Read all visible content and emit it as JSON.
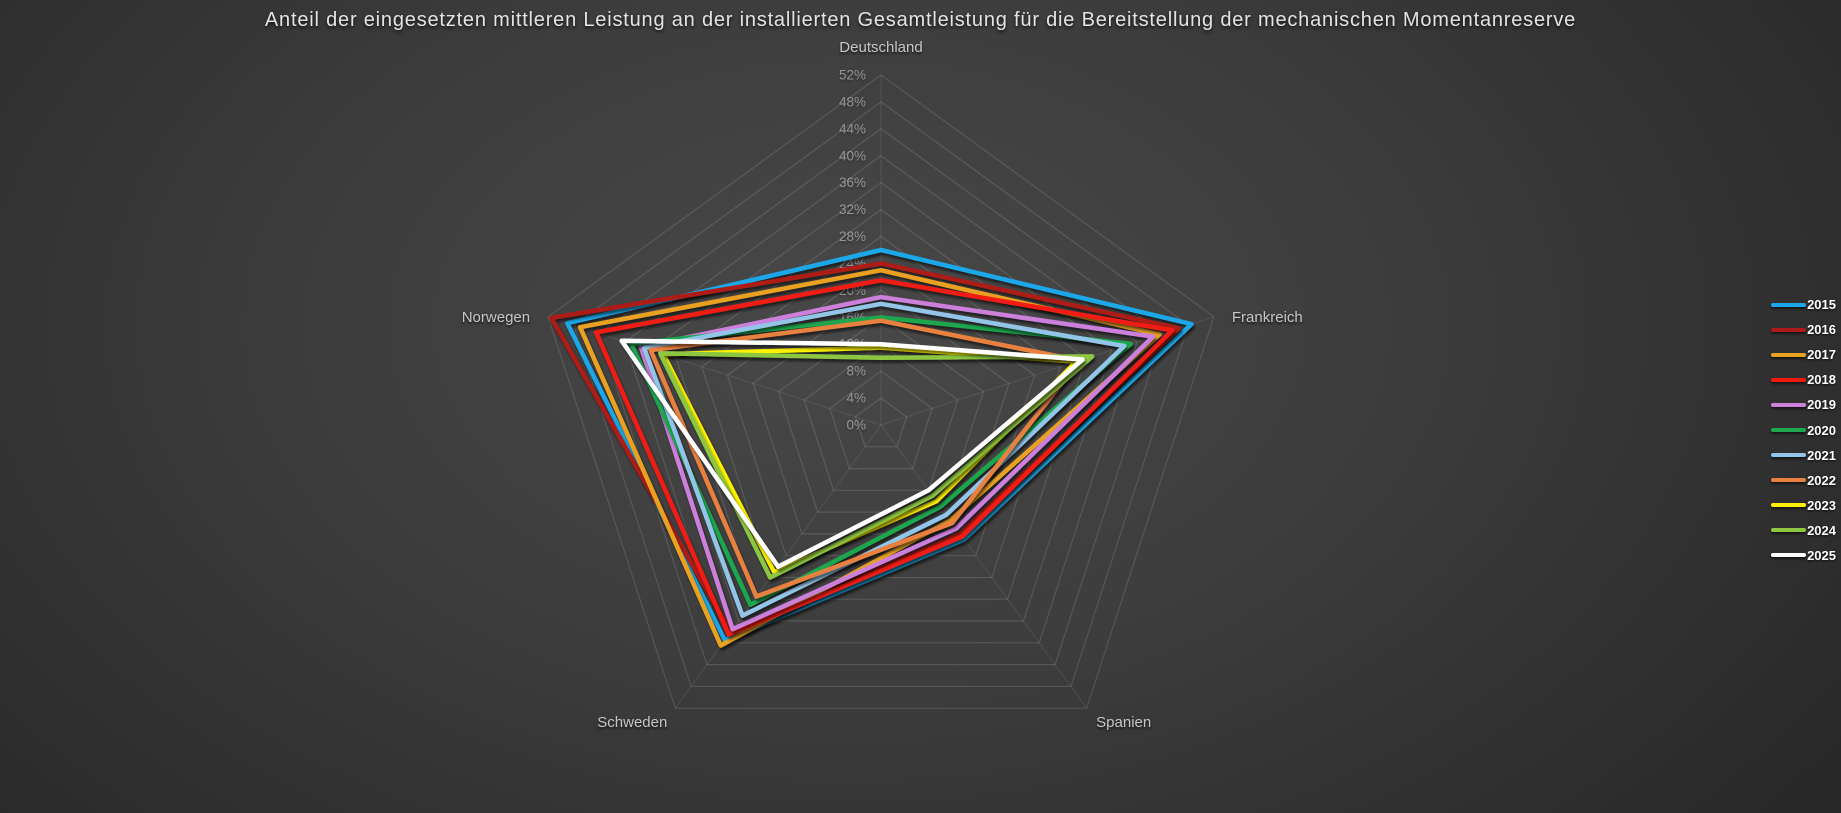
{
  "chart_data": {
    "type": "radar",
    "title": "Anteil der eingesetzten mittleren Leistung an der installierten Gesamtleistung für die Bereitstellung der mechanischen Momentanreserve",
    "axes": [
      "Deutschland",
      "Frankreich",
      "Spanien",
      "Schweden",
      "Norwegen"
    ],
    "scale": {
      "min": 0,
      "max": 52,
      "step": 4,
      "unit": "%",
      "ticks": [
        "0%",
        "4%",
        "8%",
        "12%",
        "16%",
        "20%",
        "24%",
        "28%",
        "32%",
        "36%",
        "40%",
        "44%",
        "48%",
        "52%"
      ]
    },
    "grid": true,
    "legend_position": "right",
    "series": [
      {
        "name": "2015",
        "color": "#1CA8E8",
        "values": [
          26,
          48.5,
          21,
          39.5,
          49
        ]
      },
      {
        "name": "2016",
        "color": "#AD1A17",
        "values": [
          24,
          46.5,
          20,
          38,
          51.5
        ]
      },
      {
        "name": "2017",
        "color": "#EAA121",
        "values": [
          23,
          43.5,
          17.5,
          40.5,
          47
        ]
      },
      {
        "name": "2018",
        "color": "#F21B12",
        "values": [
          21.5,
          45.5,
          20.5,
          38.5,
          44.5
        ]
      },
      {
        "name": "2019",
        "color": "#CD7FDC",
        "values": [
          19,
          42.5,
          19,
          37.5,
          37.5
        ]
      },
      {
        "name": "2020",
        "color": "#1FA74F",
        "values": [
          16,
          39,
          15,
          33,
          39
        ]
      },
      {
        "name": "2021",
        "color": "#92C5E8",
        "values": [
          18,
          38,
          16.5,
          35,
          37
        ]
      },
      {
        "name": "2022",
        "color": "#E8803F",
        "values": [
          15.5,
          31,
          18,
          31.5,
          36
        ]
      },
      {
        "name": "2023",
        "color": "#FEF200",
        "values": [
          11.5,
          30.5,
          14,
          27,
          34
        ]
      },
      {
        "name": "2024",
        "color": "#8DC63F",
        "values": [
          10,
          33,
          13,
          28,
          34.5
        ]
      },
      {
        "name": "2025",
        "color": "#FFFFFF",
        "values": [
          12,
          31.5,
          12,
          26,
          40.5
        ]
      }
    ]
  },
  "colors": {
    "background_center": "#484848",
    "background_edge": "#232323",
    "grid_line": "#5a5a5a",
    "tick_label": "#9e9e9e",
    "axis_label": "#c6c6c6",
    "legend_text": "#ffffff",
    "title_text": "#e4e4e4"
  }
}
